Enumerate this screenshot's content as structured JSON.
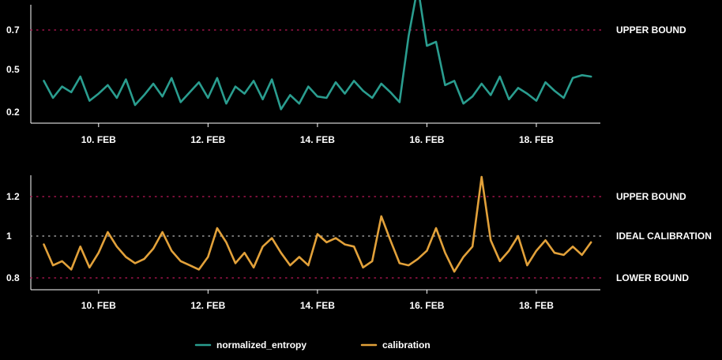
{
  "chart_data": [
    {
      "type": "line",
      "series": [
        {
          "name": "normalized_entropy",
          "color": "#2a9d8f",
          "x": [
            "2023-02-09T00:00",
            "2023-02-09T04:00",
            "2023-02-09T08:00",
            "2023-02-09T12:00",
            "2023-02-09T16:00",
            "2023-02-09T20:00",
            "2023-02-10T00:00",
            "2023-02-10T04:00",
            "2023-02-10T08:00",
            "2023-02-10T12:00",
            "2023-02-10T16:00",
            "2023-02-10T20:00",
            "2023-02-11T00:00",
            "2023-02-11T04:00",
            "2023-02-11T08:00",
            "2023-02-11T12:00",
            "2023-02-11T16:00",
            "2023-02-11T20:00",
            "2023-02-12T00:00",
            "2023-02-12T04:00",
            "2023-02-12T08:00",
            "2023-02-12T12:00",
            "2023-02-12T16:00",
            "2023-02-12T20:00",
            "2023-02-13T00:00",
            "2023-02-13T04:00",
            "2023-02-13T08:00",
            "2023-02-13T12:00",
            "2023-02-13T16:00",
            "2023-02-13T20:00",
            "2023-02-14T00:00",
            "2023-02-14T04:00",
            "2023-02-14T08:00",
            "2023-02-14T12:00",
            "2023-02-14T16:00",
            "2023-02-14T20:00",
            "2023-02-15T00:00",
            "2023-02-15T04:00",
            "2023-02-15T08:00",
            "2023-02-15T12:00",
            "2023-02-15T16:00",
            "2023-02-15T20:00",
            "2023-02-16T00:00",
            "2023-02-16T04:00",
            "2023-02-16T08:00",
            "2023-02-16T12:00",
            "2023-02-16T16:00",
            "2023-02-16T20:00",
            "2023-02-17T00:00",
            "2023-02-17T04:00",
            "2023-02-17T08:00",
            "2023-02-17T12:00",
            "2023-02-17T16:00",
            "2023-02-17T20:00",
            "2023-02-18T00:00",
            "2023-02-18T04:00",
            "2023-02-18T08:00",
            "2023-02-18T12:00",
            "2023-02-18T16:00",
            "2023-02-18T20:00",
            "2023-02-19T00:00"
          ],
          "values": [
            0.42,
            0.3,
            0.38,
            0.34,
            0.45,
            0.28,
            0.33,
            0.39,
            0.3,
            0.43,
            0.25,
            0.32,
            0.4,
            0.31,
            0.44,
            0.27,
            0.34,
            0.41,
            0.3,
            0.44,
            0.26,
            0.38,
            0.33,
            0.42,
            0.29,
            0.43,
            0.22,
            0.32,
            0.26,
            0.38,
            0.31,
            0.3,
            0.41,
            0.33,
            0.42,
            0.35,
            0.3,
            0.4,
            0.34,
            0.27,
            0.67,
            0.92,
            0.62,
            0.64,
            0.39,
            0.42,
            0.26,
            0.31,
            0.4,
            0.32,
            0.45,
            0.29,
            0.37,
            0.33,
            0.28,
            0.41,
            0.35,
            0.3,
            0.44,
            0.46,
            0.45
          ]
        }
      ],
      "xticks": [
        "10. FEB",
        "12. FEB",
        "14. FEB",
        "16. FEB",
        "18. FEB"
      ],
      "yticks": [
        "0.2",
        "0.5",
        "0.7"
      ],
      "ylim": [
        0.15,
        0.92
      ],
      "annotations": [
        {
          "label": "UPPER BOUND",
          "y": 0.7,
          "color": "#c2185b"
        }
      ]
    },
    {
      "type": "line",
      "series": [
        {
          "name": "calibration",
          "color": "#e2a13a",
          "x": [
            "2023-02-09T00:00",
            "2023-02-09T04:00",
            "2023-02-09T08:00",
            "2023-02-09T12:00",
            "2023-02-09T16:00",
            "2023-02-09T20:00",
            "2023-02-10T00:00",
            "2023-02-10T04:00",
            "2023-02-10T08:00",
            "2023-02-10T12:00",
            "2023-02-10T16:00",
            "2023-02-10T20:00",
            "2023-02-11T00:00",
            "2023-02-11T04:00",
            "2023-02-11T08:00",
            "2023-02-11T12:00",
            "2023-02-11T16:00",
            "2023-02-11T20:00",
            "2023-02-12T00:00",
            "2023-02-12T04:00",
            "2023-02-12T08:00",
            "2023-02-12T12:00",
            "2023-02-12T16:00",
            "2023-02-12T20:00",
            "2023-02-13T00:00",
            "2023-02-13T04:00",
            "2023-02-13T08:00",
            "2023-02-13T12:00",
            "2023-02-13T16:00",
            "2023-02-13T20:00",
            "2023-02-14T00:00",
            "2023-02-14T04:00",
            "2023-02-14T08:00",
            "2023-02-14T12:00",
            "2023-02-14T16:00",
            "2023-02-14T20:00",
            "2023-02-15T00:00",
            "2023-02-15T04:00",
            "2023-02-15T08:00",
            "2023-02-15T12:00",
            "2023-02-15T16:00",
            "2023-02-15T20:00",
            "2023-02-16T00:00",
            "2023-02-16T04:00",
            "2023-02-16T08:00",
            "2023-02-16T12:00",
            "2023-02-16T16:00",
            "2023-02-16T20:00",
            "2023-02-17T00:00",
            "2023-02-17T04:00",
            "2023-02-17T08:00",
            "2023-02-17T12:00",
            "2023-02-17T16:00",
            "2023-02-17T20:00",
            "2023-02-18T00:00",
            "2023-02-18T04:00",
            "2023-02-18T08:00",
            "2023-02-18T12:00",
            "2023-02-18T16:00",
            "2023-02-18T20:00",
            "2023-02-19T00:00"
          ],
          "values": [
            0.96,
            0.86,
            0.88,
            0.84,
            0.95,
            0.85,
            0.92,
            1.02,
            0.95,
            0.9,
            0.87,
            0.89,
            0.94,
            1.02,
            0.93,
            0.88,
            0.86,
            0.84,
            0.9,
            1.04,
            0.97,
            0.87,
            0.92,
            0.85,
            0.95,
            0.99,
            0.92,
            0.86,
            0.9,
            0.86,
            1.01,
            0.97,
            0.99,
            0.96,
            0.95,
            0.85,
            0.88,
            1.1,
            0.98,
            0.87,
            0.86,
            0.89,
            0.93,
            1.04,
            0.92,
            0.83,
            0.9,
            0.95,
            1.3,
            0.98,
            0.88,
            0.93,
            1.0,
            0.86,
            0.93,
            0.98,
            0.92,
            0.91,
            0.95,
            0.91,
            0.97
          ],
          "peak": 1.3
        }
      ],
      "xticks": [
        "10. FEB",
        "12. FEB",
        "14. FEB",
        "16. FEB",
        "18. FEB"
      ],
      "yticks": [
        "0.8",
        "1",
        "1.2"
      ],
      "ylim": [
        0.75,
        1.3
      ],
      "annotations": [
        {
          "label": "UPPER BOUND",
          "y": 1.2,
          "color": "#c2185b"
        },
        {
          "label": "IDEAL CALIBRATION",
          "y": 1.0,
          "color": "#bbbbbb"
        },
        {
          "label": "LOWER BOUND",
          "y": 0.8,
          "color": "#c2185b"
        }
      ]
    }
  ],
  "legend": [
    {
      "label": "normalized_entropy",
      "color": "#2a9d8f"
    },
    {
      "label": "calibration",
      "color": "#e2a13a"
    }
  ]
}
